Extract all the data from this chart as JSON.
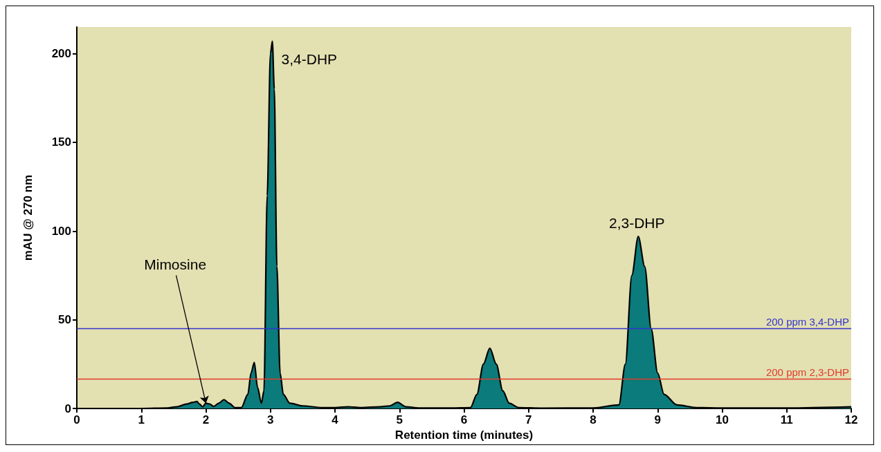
{
  "chart_data": {
    "type": "area",
    "xlabel": "Retention time (minutes)",
    "ylabel": "mAU @ 270 nm",
    "x": [
      0,
      0.5,
      1,
      1.4,
      1.55,
      1.7,
      1.8,
      1.86,
      1.9,
      1.95,
      2.0,
      2.06,
      2.12,
      2.2,
      2.28,
      2.36,
      2.45,
      2.55,
      2.65,
      2.7,
      2.75,
      2.8,
      2.86,
      2.9,
      2.95,
      3.0,
      3.03,
      3.06,
      3.1,
      3.15,
      3.2,
      3.3,
      3.5,
      3.8,
      4.0,
      4.2,
      4.4,
      4.7,
      4.85,
      4.97,
      5.1,
      5.3,
      5.8,
      6.1,
      6.2,
      6.3,
      6.4,
      6.5,
      6.6,
      6.7,
      6.85,
      7.2,
      8.0,
      8.4,
      8.5,
      8.6,
      8.7,
      8.8,
      8.9,
      9.0,
      9.1,
      9.3,
      9.6,
      10,
      11,
      12
    ],
    "series": [
      {
        "color": "#0b7b7b",
        "values": [
          0,
          0,
          0,
          0.3,
          1,
          2.5,
          3.5,
          4,
          2.5,
          1,
          3,
          2.5,
          1.2,
          3,
          5,
          3,
          0.5,
          0.5,
          8,
          20,
          26,
          12,
          3,
          10,
          120,
          200,
          207,
          180,
          80,
          20,
          8,
          3,
          1.5,
          0.5,
          0.5,
          1,
          0.5,
          1,
          1.5,
          3.5,
          1,
          0.3,
          0.3,
          0.5,
          8,
          25,
          34,
          25,
          10,
          3,
          0.5,
          0.2,
          0.3,
          2,
          25,
          75,
          97,
          80,
          45,
          20,
          8,
          2,
          0.5,
          0.3,
          0.3,
          1
        ]
      }
    ],
    "xlim": [
      0,
      12
    ],
    "xticks": [
      0,
      1,
      2,
      3,
      4,
      5,
      6,
      7,
      8,
      9,
      10,
      11,
      12
    ],
    "ylim": [
      0,
      215
    ],
    "yticks": [
      0,
      50,
      100,
      150,
      200
    ],
    "grid": false,
    "ref_lines": [
      {
        "axis": "y",
        "value": 45,
        "label": "200 ppm 3,4-DHP",
        "color": "#3333cc"
      },
      {
        "axis": "y",
        "value": 16.5,
        "label": "200 ppm 2,3-DHP",
        "color": "#e03a2a"
      }
    ],
    "annotations": [
      {
        "text": "3,4-DHP",
        "x": 3.03,
        "y": 207
      },
      {
        "text": "2,3-DHP",
        "x": 8.7,
        "y": 97
      },
      {
        "text": "Mimosine",
        "x": 2.0,
        "y": 3
      }
    ]
  }
}
